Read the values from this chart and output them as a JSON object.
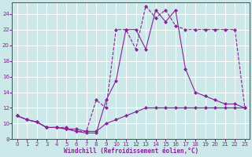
{
  "background_color": "#cde8e8",
  "grid_color": "#ffffff",
  "line_color": "#882299",
  "xlabel": "Windchill (Refroidissement éolien,°C)",
  "xlim": [
    -0.5,
    23.5
  ],
  "ylim": [
    8,
    25.5
  ],
  "yticks": [
    8,
    10,
    12,
    14,
    16,
    18,
    20,
    22,
    24
  ],
  "xticks": [
    0,
    1,
    2,
    3,
    4,
    5,
    6,
    7,
    8,
    9,
    10,
    11,
    12,
    13,
    14,
    15,
    16,
    17,
    18,
    19,
    20,
    21,
    22,
    23
  ],
  "line1_x": [
    0,
    1,
    2,
    3,
    4,
    5,
    6,
    7,
    8,
    9,
    10,
    11,
    12,
    13,
    14,
    15,
    16,
    17,
    18,
    19,
    20,
    21,
    22,
    23
  ],
  "line1_y": [
    11,
    10.5,
    10.2,
    9.5,
    9.5,
    9.3,
    9.3,
    9.0,
    9.0,
    10.0,
    10.5,
    11.0,
    11.5,
    12.0,
    12.0,
    12.0,
    12.0,
    12.0,
    12.0,
    12.0,
    12.0,
    12.0,
    12.0,
    12.0
  ],
  "line1_style": "-",
  "line2_x": [
    0,
    1,
    2,
    3,
    4,
    5,
    6,
    7,
    8,
    9,
    10,
    11,
    12,
    13,
    14,
    15,
    16,
    17,
    18,
    19,
    20,
    21,
    22,
    23
  ],
  "line2_y": [
    11,
    10.5,
    10.2,
    9.5,
    9.5,
    9.5,
    9.0,
    9.0,
    13.0,
    12.0,
    22.0,
    22.0,
    19.5,
    25.0,
    23.5,
    24.5,
    22.5,
    22.0,
    22.0,
    22.0,
    22.0,
    22.0,
    22.0,
    12.0
  ],
  "line2_style": "--",
  "line3_x": [
    0,
    1,
    2,
    3,
    4,
    5,
    6,
    7,
    8,
    9,
    10,
    11,
    12,
    13,
    14,
    15,
    16,
    17,
    18,
    19,
    20,
    21,
    22,
    23
  ],
  "line3_y": [
    11,
    10.5,
    10.2,
    9.5,
    9.5,
    9.3,
    9.0,
    8.8,
    8.8,
    13.0,
    15.5,
    22.0,
    22.0,
    19.5,
    24.5,
    23.0,
    24.5,
    17.0,
    14.0,
    13.5,
    13.0,
    12.5,
    12.5,
    12.0
  ],
  "line3_style": "-",
  "marker": "D",
  "markersize": 2.0,
  "linewidth": 0.8
}
